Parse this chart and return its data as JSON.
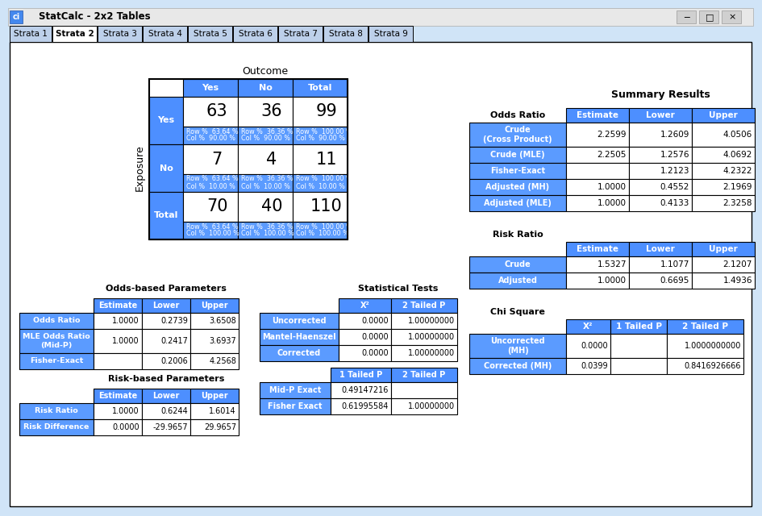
{
  "title": "StatCalc - 2x2 Tables",
  "tabs": [
    "Strata 1",
    "Strata 2",
    "Strata 3",
    "Strata 4",
    "Strata 5",
    "Strata 6",
    "Strata 7",
    "Strata 8",
    "Strata 9"
  ],
  "active_tab": 1,
  "BLUE": "#4D8FFF",
  "BLUE2": "#5B9BFF",
  "WHITE": "#FFFFFF",
  "WINBG": "#D0E4F7",
  "TABBG": "#BDD0EA",
  "BLACK": "#000000",
  "GRAY": "#E8E8E8",
  "outcome_label": "Outcome",
  "exposure_label": "Exposure",
  "col_headers": [
    "Yes",
    "No",
    "Total"
  ],
  "row_labels": [
    "Yes",
    "No",
    "Total"
  ],
  "cell_values": [
    [
      "63",
      "36",
      "99"
    ],
    [
      "7",
      "4",
      "11"
    ],
    [
      "70",
      "40",
      "110"
    ]
  ],
  "row_pct": [
    [
      "63.64 %",
      "36.36 %",
      "100.00 %"
    ],
    [
      "63.64 %",
      "36.36 %",
      "100.00 %"
    ],
    [
      "63.64 %",
      "36.36 %",
      "100.00 %"
    ]
  ],
  "col_pct": [
    [
      "90.00 %",
      "90.00 %",
      "90.00 %"
    ],
    [
      "10.00 %",
      "10.00 %",
      "10.00 %"
    ],
    [
      "100.00 %",
      "100.00 %",
      "100.00 %"
    ]
  ],
  "odds_title": "Odds-based Parameters",
  "odds_rows": [
    [
      "Odds Ratio",
      "1.0000",
      "0.2739",
      "3.6508"
    ],
    [
      "MLE Odds Ratio\n(Mid-P)",
      "1.0000",
      "0.2417",
      "3.6937"
    ],
    [
      "Fisher-Exact",
      "",
      "0.2006",
      "4.2568"
    ]
  ],
  "risk_title": "Risk-based Parameters",
  "risk_rows": [
    [
      "Risk Ratio",
      "1.0000",
      "0.6244",
      "1.6014"
    ],
    [
      "Risk Difference",
      "0.0000",
      "-29.9657",
      "29.9657"
    ]
  ],
  "stat_title": "Statistical Tests",
  "stat_rows": [
    [
      "Uncorrected",
      "0.0000",
      "1.00000000"
    ],
    [
      "Mantel-Haenszel",
      "0.0000",
      "1.00000000"
    ],
    [
      "Corrected",
      "0.0000",
      "1.00000000"
    ]
  ],
  "exact_rows": [
    [
      "Mid-P Exact",
      "0.49147216",
      ""
    ],
    [
      "Fisher Exact",
      "0.61995584",
      "1.00000000"
    ]
  ],
  "summary_title": "Summary Results",
  "or_label": "Odds Ratio",
  "or_rows": [
    [
      "Crude\n(Cross Product)",
      "2.2599",
      "1.2609",
      "4.0506"
    ],
    [
      "Crude (MLE)",
      "2.2505",
      "1.2576",
      "4.0692"
    ],
    [
      "Fisher-Exact",
      "",
      "1.2123",
      "4.2322"
    ],
    [
      "Adjusted (MH)",
      "1.0000",
      "0.4552",
      "2.1969"
    ],
    [
      "Adjusted (MLE)",
      "1.0000",
      "0.4133",
      "2.3258"
    ]
  ],
  "rr_label": "Risk Ratio",
  "rr_rows": [
    [
      "Crude",
      "1.5327",
      "1.1077",
      "2.1207"
    ],
    [
      "Adjusted",
      "1.0000",
      "0.6695",
      "1.4936"
    ]
  ],
  "chi_label": "Chi Square",
  "chi_rows": [
    [
      "Uncorrected\n(MH)",
      "0.0000",
      "",
      "1.0000000000"
    ],
    [
      "Corrected (MH)",
      "0.0399",
      "",
      "0.8416926666"
    ]
  ]
}
